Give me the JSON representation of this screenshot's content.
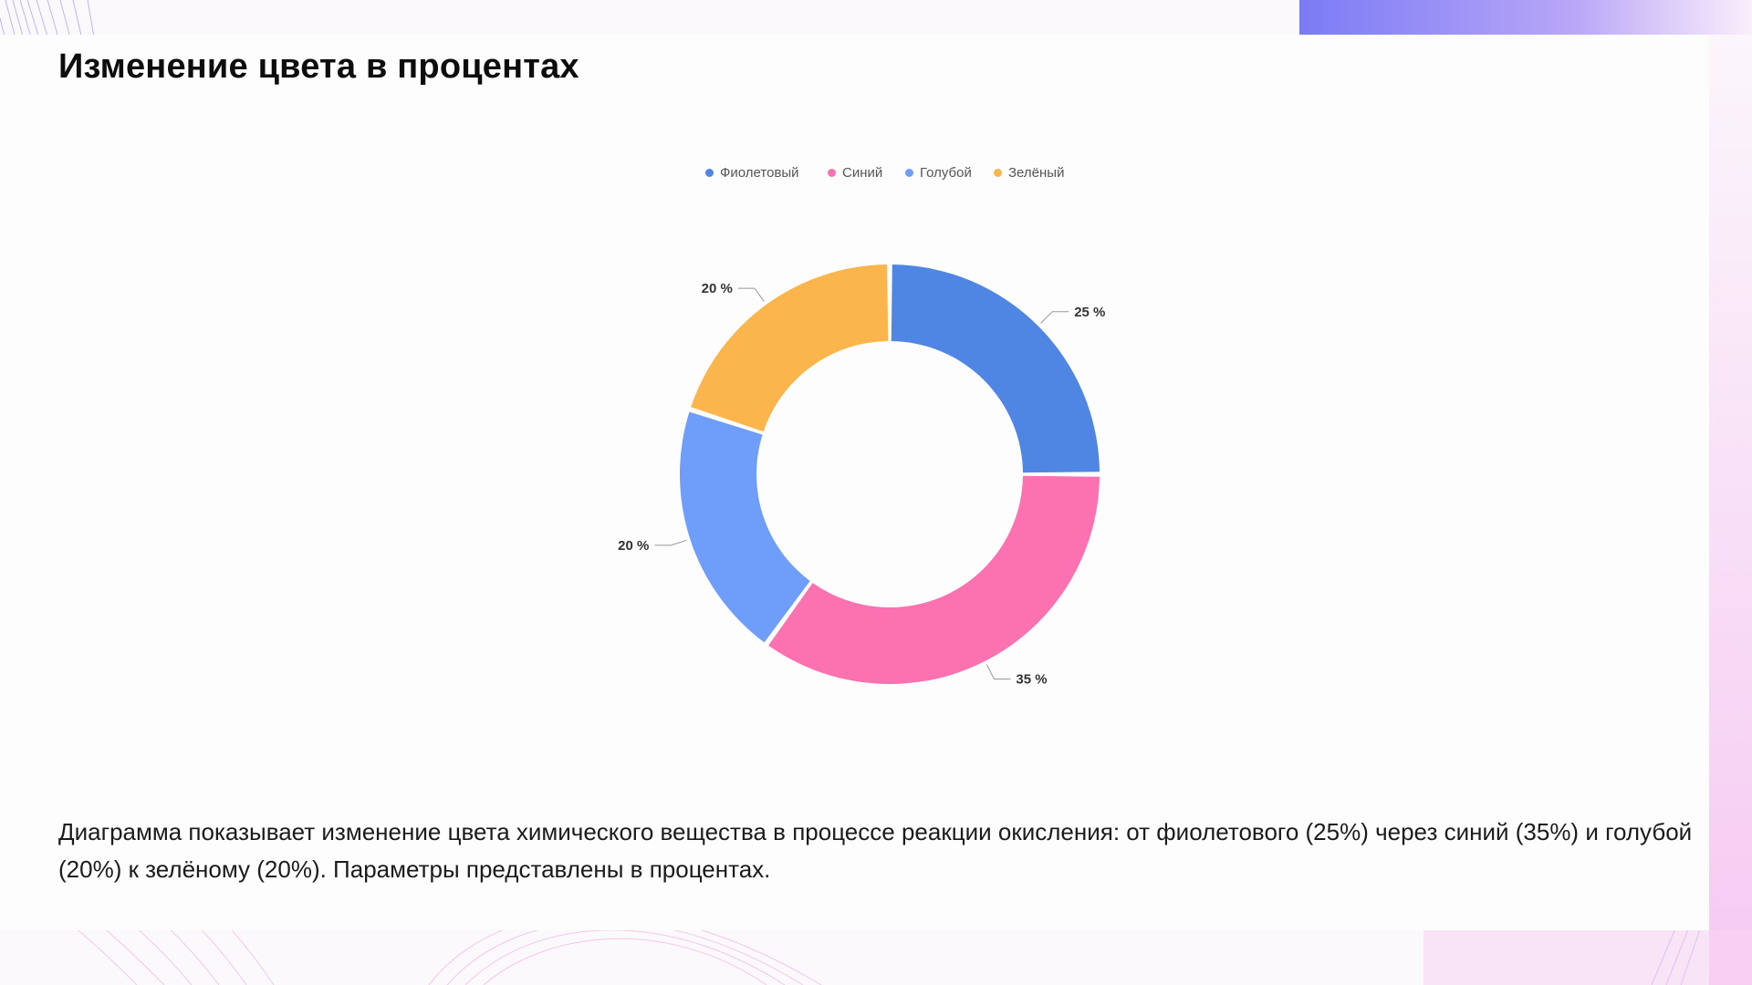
{
  "slide": {
    "title": "Изменение цвета в процентах",
    "description": "Диаграмма показывает изменение цвета химического вещества в процессе реакции окисления: от фиолетового (25%) через синий (35%) и голубой (20%) к зелёному (20%). Параметры представлены в процентах."
  },
  "colors": {
    "violet": "#5086e3",
    "blue": "#fc72b0",
    "light_blue": "#6f9dfa",
    "green": "#fbb54d",
    "accent_gradient_start": "#7c7cf6",
    "accent_gradient_end": "#f7d6f6"
  },
  "chart_data": {
    "type": "pie",
    "variant": "donut",
    "title": "",
    "legend_position": "top-center",
    "slices": [
      {
        "label": "Фиолетовый",
        "value": 25,
        "label_text": "25 %",
        "color": "#5086e3"
      },
      {
        "label": "Синий",
        "value": 35,
        "label_text": "35 %",
        "color": "#fc72b0"
      },
      {
        "label": "Голубой",
        "value": 20,
        "label_text": "20 %",
        "color": "#6f9dfa"
      },
      {
        "label": "Зелёный",
        "value": 20,
        "label_text": "20 %",
        "color": "#fbb54d"
      }
    ]
  }
}
